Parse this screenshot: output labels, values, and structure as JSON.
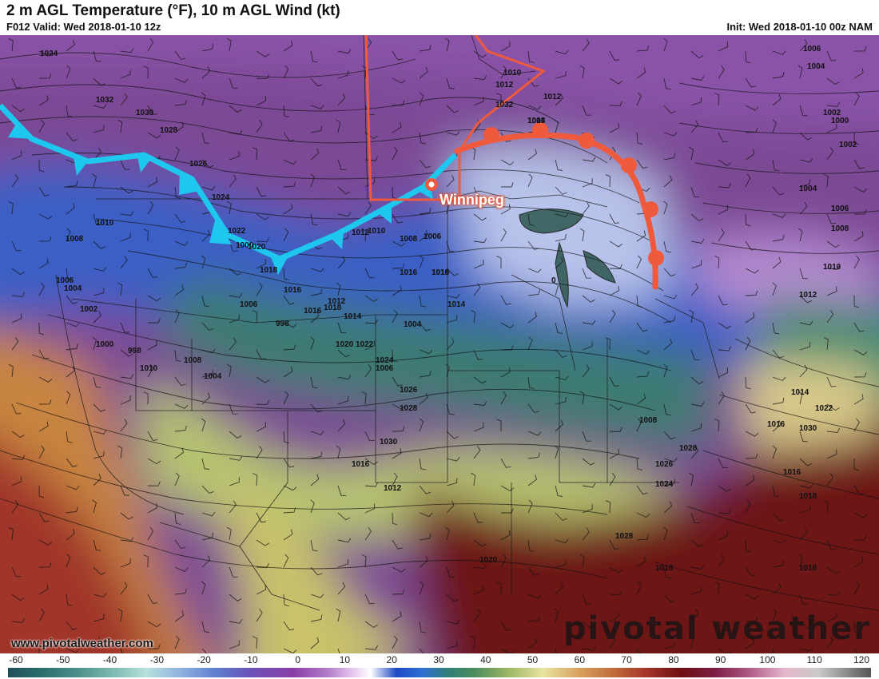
{
  "header": {
    "title": "2 m AGL Temperature (°F), 10 m AGL Wind (kt)",
    "valid": "F012 Valid: Wed 2018-01-10 12z",
    "init": "Init: Wed 2018-01-10 00z NAM"
  },
  "map": {
    "city_label": "Winnipeg",
    "isobar_labels": [
      "1034",
      "1032",
      "1030",
      "1028",
      "1026",
      "1024",
      "1022",
      "1020",
      "1018",
      "1016",
      "1010",
      "1008",
      "1006",
      "1004",
      "1002",
      "1000",
      "998",
      "1010",
      "1008",
      "1004",
      "1006",
      "1000",
      "998",
      "1016",
      "1018",
      "1020",
      "1022",
      "1024",
      "1026",
      "1028",
      "1030",
      "1032",
      "1012",
      "1014",
      "1012",
      "1010",
      "1008",
      "1006",
      "1004",
      "1002",
      "1000",
      "1002",
      "1004",
      "1006",
      "1008",
      "1010",
      "1012",
      "1014",
      "1016",
      "1016",
      "1018",
      "1016",
      "1014",
      "1018",
      "1016",
      "1014",
      "1012",
      "1012",
      "1010",
      "1008",
      "1006",
      "1004",
      "1006",
      "1008",
      "1028",
      "1026",
      "1024",
      "1022",
      "1030",
      "1028",
      "1018",
      "1016",
      "1020",
      "1016",
      "1012",
      "0"
    ],
    "cold_front_color": "#1ec7ee",
    "warm_front_color": "#ef5a3c",
    "boundary_color": "#ef5a3c"
  },
  "footer": {
    "site": "www.pivotalweather.com",
    "brand": "pivotal weather"
  },
  "colorbar": {
    "ticks": [
      "-60",
      "-50",
      "-40",
      "-30",
      "-20",
      "-10",
      "0",
      "10",
      "20",
      "30",
      "40",
      "50",
      "60",
      "70",
      "80",
      "90",
      "100",
      "110",
      "120"
    ]
  }
}
